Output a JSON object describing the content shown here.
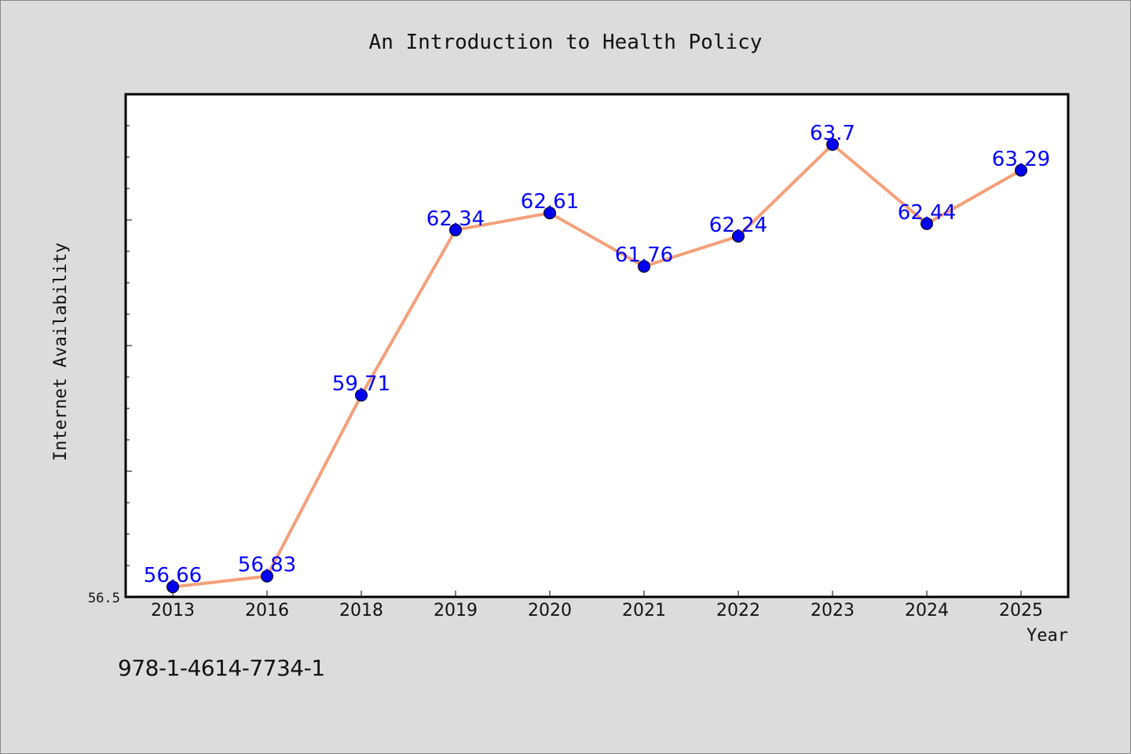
{
  "chart_data": {
    "type": "line",
    "title": "An Introduction to Health Policy",
    "xlabel": "Year",
    "ylabel": "Internet Availability",
    "categories": [
      "2013",
      "2016",
      "2018",
      "2019",
      "2020",
      "2021",
      "2022",
      "2023",
      "2024",
      "2025"
    ],
    "series": [
      {
        "values": [
          56.66,
          56.83,
          59.71,
          62.34,
          62.61,
          61.76,
          62.24,
          63.7,
          62.44,
          63.29
        ],
        "data_labels": [
          "56.66",
          "56.83",
          "59.71",
          "62.34",
          "62.61",
          "61.76",
          "62.24",
          "63.7",
          "62.44",
          "63.29"
        ]
      }
    ],
    "ylim": [
      56.5,
      64.5
    ],
    "ytick_label": "56.5",
    "grid": false,
    "line_color": "#f4a07a",
    "marker_color": "#0000ee",
    "label_color": "#0000ff"
  },
  "footer_code": "978-1-4614-7734-1"
}
